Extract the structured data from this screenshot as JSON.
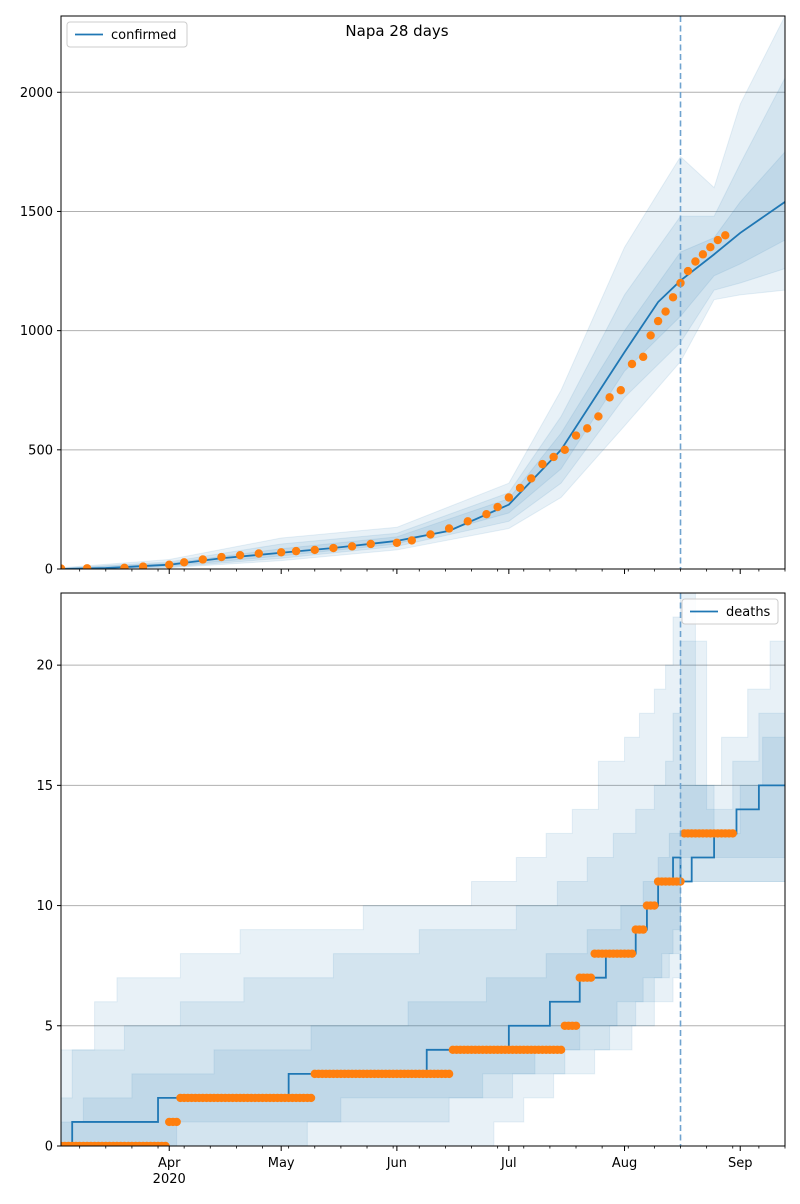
{
  "figure": {
    "title": "Napa 28 days",
    "background": "#ffffff",
    "colors": {
      "model": "#1f77b4",
      "observed": "#ff7f0e",
      "band": "#1f77b4",
      "grid": "#b0b0b0",
      "cutoff": "#6fa3cf"
    }
  },
  "chart_data": [
    {
      "type": "line",
      "title": "Napa 28 days",
      "legend": {
        "entries": [
          "confirmed"
        ],
        "placement": "top-left"
      },
      "grid": "horizontal",
      "xaxis": {
        "type": "date",
        "xlim": [
          "2020-03-03",
          "2020-09-13"
        ],
        "tick_labels": [],
        "major_ticks": [
          "2020-04-01",
          "2020-05-01",
          "2020-06-01",
          "2020-07-01",
          "2020-08-01",
          "2020-09-01"
        ]
      },
      "ylim": [
        0,
        2320
      ],
      "yticks": [
        0,
        500,
        1000,
        1500,
        2000
      ],
      "cutoff_date": "2020-08-16",
      "model": {
        "name": "confirmed",
        "x": [
          "2020-03-03",
          "2020-03-15",
          "2020-04-01",
          "2020-04-15",
          "2020-05-01",
          "2020-05-15",
          "2020-06-01",
          "2020-06-15",
          "2020-07-01",
          "2020-07-15",
          "2020-08-01",
          "2020-08-10",
          "2020-08-16",
          "2020-08-25",
          "2020-09-01",
          "2020-09-13"
        ],
        "y": [
          0,
          4,
          18,
          45,
          68,
          88,
          118,
          160,
          270,
          500,
          910,
          1120,
          1210,
          1320,
          1410,
          1540
        ]
      },
      "bands": [
        {
          "level": "outer",
          "x": [
            "2020-03-03",
            "2020-04-01",
            "2020-05-01",
            "2020-06-01",
            "2020-07-01",
            "2020-07-15",
            "2020-08-01",
            "2020-08-16",
            "2020-08-25",
            "2020-09-01",
            "2020-09-13"
          ],
          "lower": [
            0,
            5,
            35,
            80,
            170,
            300,
            600,
            870,
            1130,
            1150,
            1170
          ],
          "upper": [
            5,
            40,
            130,
            175,
            360,
            750,
            1350,
            1730,
            1600,
            1950,
            2320
          ]
        },
        {
          "level": "middle",
          "x": [
            "2020-03-03",
            "2020-04-01",
            "2020-05-01",
            "2020-06-01",
            "2020-07-01",
            "2020-07-15",
            "2020-08-01",
            "2020-08-16",
            "2020-08-25",
            "2020-09-01",
            "2020-09-13"
          ],
          "lower": [
            0,
            8,
            45,
            95,
            200,
            360,
            720,
            950,
            1170,
            1200,
            1260
          ],
          "upper": [
            3,
            30,
            105,
            150,
            320,
            640,
            1150,
            1480,
            1480,
            1700,
            2060
          ]
        },
        {
          "level": "inner",
          "x": [
            "2020-03-03",
            "2020-04-01",
            "2020-05-01",
            "2020-06-01",
            "2020-07-01",
            "2020-07-15",
            "2020-08-01",
            "2020-08-16",
            "2020-08-25",
            "2020-09-01",
            "2020-09-13"
          ],
          "lower": [
            0,
            12,
            55,
            105,
            235,
            420,
            830,
            1060,
            1230,
            1280,
            1380
          ],
          "upper": [
            2,
            24,
            85,
            135,
            295,
            570,
            1000,
            1330,
            1390,
            1540,
            1750
          ]
        }
      ],
      "observed": {
        "x": [
          "2020-03-03",
          "2020-03-10",
          "2020-03-20",
          "2020-03-25",
          "2020-04-01",
          "2020-04-05",
          "2020-04-10",
          "2020-04-15",
          "2020-04-20",
          "2020-04-25",
          "2020-05-01",
          "2020-05-05",
          "2020-05-10",
          "2020-05-15",
          "2020-05-20",
          "2020-05-25",
          "2020-06-01",
          "2020-06-05",
          "2020-06-10",
          "2020-06-15",
          "2020-06-20",
          "2020-06-25",
          "2020-06-28",
          "2020-07-01",
          "2020-07-04",
          "2020-07-07",
          "2020-07-10",
          "2020-07-13",
          "2020-07-16",
          "2020-07-19",
          "2020-07-22",
          "2020-07-25",
          "2020-07-28",
          "2020-07-31",
          "2020-08-03",
          "2020-08-06",
          "2020-08-08",
          "2020-08-10",
          "2020-08-12",
          "2020-08-14",
          "2020-08-16",
          "2020-08-18",
          "2020-08-20",
          "2020-08-22",
          "2020-08-24",
          "2020-08-26",
          "2020-08-28"
        ],
        "y": [
          2,
          3,
          5,
          10,
          18,
          28,
          40,
          50,
          58,
          65,
          70,
          75,
          80,
          88,
          95,
          105,
          110,
          120,
          145,
          170,
          200,
          230,
          260,
          300,
          340,
          380,
          440,
          470,
          500,
          560,
          590,
          640,
          720,
          750,
          860,
          890,
          980,
          1040,
          1080,
          1140,
          1200,
          1250,
          1290,
          1320,
          1350,
          1380,
          1400
        ]
      }
    },
    {
      "type": "line",
      "title": "",
      "legend": {
        "entries": [
          "deaths"
        ],
        "placement": "top-right"
      },
      "grid": "horizontal",
      "xaxis": {
        "type": "date",
        "xlim": [
          "2020-03-03",
          "2020-09-13"
        ],
        "major_ticks": [
          "2020-04-01",
          "2020-05-01",
          "2020-06-01",
          "2020-07-01",
          "2020-08-01",
          "2020-09-01"
        ],
        "tick_labels": [
          {
            "date": "2020-04-01",
            "label": "Apr",
            "sub": "2020"
          },
          {
            "date": "2020-05-01",
            "label": "May",
            "sub": ""
          },
          {
            "date": "2020-06-01",
            "label": "Jun",
            "sub": ""
          },
          {
            "date": "2020-07-01",
            "label": "Jul",
            "sub": ""
          },
          {
            "date": "2020-08-01",
            "label": "Aug",
            "sub": ""
          },
          {
            "date": "2020-09-01",
            "label": "Sep",
            "sub": ""
          }
        ]
      },
      "ylim": [
        0,
        23
      ],
      "yticks": [
        0,
        5,
        10,
        15,
        20
      ],
      "cutoff_date": "2020-08-16",
      "model": {
        "name": "deaths",
        "steps": [
          {
            "date": "2020-03-03",
            "value": 0
          },
          {
            "date": "2020-03-06",
            "value": 1
          },
          {
            "date": "2020-03-29",
            "value": 2
          },
          {
            "date": "2020-05-03",
            "value": 3
          },
          {
            "date": "2020-06-09",
            "value": 4
          },
          {
            "date": "2020-07-01",
            "value": 5
          },
          {
            "date": "2020-07-12",
            "value": 6
          },
          {
            "date": "2020-07-20",
            "value": 7
          },
          {
            "date": "2020-07-27",
            "value": 8
          },
          {
            "date": "2020-08-04",
            "value": 9
          },
          {
            "date": "2020-08-07",
            "value": 10
          },
          {
            "date": "2020-08-10",
            "value": 11
          },
          {
            "date": "2020-08-14",
            "value": 12
          },
          {
            "date": "2020-08-16",
            "value": 11
          },
          {
            "date": "2020-08-19",
            "value": 12
          },
          {
            "date": "2020-08-25",
            "value": 13
          },
          {
            "date": "2020-08-31",
            "value": 14
          },
          {
            "date": "2020-09-06",
            "value": 15
          },
          {
            "date": "2020-09-13",
            "value": 15
          }
        ]
      },
      "bands": [
        {
          "level": "outer",
          "lower": [
            [
              "2020-03-03",
              0
            ],
            [
              "2020-06-27",
              1
            ],
            [
              "2020-07-05",
              2
            ],
            [
              "2020-07-13",
              3
            ],
            [
              "2020-07-24",
              4
            ],
            [
              "2020-08-03",
              5
            ],
            [
              "2020-08-09",
              6
            ],
            [
              "2020-08-14",
              7
            ],
            [
              "2020-08-16",
              11
            ],
            [
              "2020-09-13",
              11
            ]
          ],
          "upper": [
            [
              "2020-03-03",
              4
            ],
            [
              "2020-03-12",
              6
            ],
            [
              "2020-03-18",
              7
            ],
            [
              "2020-04-04",
              8
            ],
            [
              "2020-04-20",
              9
            ],
            [
              "2020-05-23",
              10
            ],
            [
              "2020-06-21",
              11
            ],
            [
              "2020-07-03",
              12
            ],
            [
              "2020-07-11",
              13
            ],
            [
              "2020-07-18",
              14
            ],
            [
              "2020-07-25",
              16
            ],
            [
              "2020-08-01",
              17
            ],
            [
              "2020-08-05",
              18
            ],
            [
              "2020-08-09",
              19
            ],
            [
              "2020-08-12",
              20
            ],
            [
              "2020-08-14",
              22
            ],
            [
              "2020-08-16",
              23
            ],
            [
              "2020-08-20",
              15
            ],
            [
              "2020-08-27",
              17
            ],
            [
              "2020-09-03",
              19
            ],
            [
              "2020-09-09",
              21
            ],
            [
              "2020-09-13",
              23
            ]
          ]
        },
        {
          "level": "middle",
          "lower": [
            [
              "2020-03-03",
              0
            ],
            [
              "2020-05-08",
              1
            ],
            [
              "2020-06-15",
              2
            ],
            [
              "2020-07-02",
              3
            ],
            [
              "2020-07-16",
              4
            ],
            [
              "2020-07-28",
              5
            ],
            [
              "2020-08-04",
              6
            ],
            [
              "2020-08-09",
              7
            ],
            [
              "2020-08-13",
              8
            ],
            [
              "2020-08-16",
              11
            ],
            [
              "2020-09-13",
              11
            ]
          ],
          "upper": [
            [
              "2020-03-03",
              2
            ],
            [
              "2020-03-06",
              4
            ],
            [
              "2020-03-20",
              5
            ],
            [
              "2020-04-04",
              6
            ],
            [
              "2020-04-21",
              7
            ],
            [
              "2020-05-15",
              8
            ],
            [
              "2020-06-07",
              9
            ],
            [
              "2020-07-03",
              10
            ],
            [
              "2020-07-14",
              11
            ],
            [
              "2020-07-22",
              12
            ],
            [
              "2020-07-29",
              13
            ],
            [
              "2020-08-04",
              14
            ],
            [
              "2020-08-09",
              15
            ],
            [
              "2020-08-12",
              16
            ],
            [
              "2020-08-14",
              18
            ],
            [
              "2020-08-16",
              21
            ],
            [
              "2020-08-23",
              14
            ],
            [
              "2020-08-30",
              16
            ],
            [
              "2020-09-06",
              18
            ],
            [
              "2020-09-13",
              20
            ]
          ]
        },
        {
          "level": "inner",
          "lower": [
            [
              "2020-03-03",
              0
            ],
            [
              "2020-04-03",
              1
            ],
            [
              "2020-05-17",
              2
            ],
            [
              "2020-06-24",
              3
            ],
            [
              "2020-07-08",
              4
            ],
            [
              "2020-07-20",
              5
            ],
            [
              "2020-07-30",
              6
            ],
            [
              "2020-08-06",
              7
            ],
            [
              "2020-08-11",
              8
            ],
            [
              "2020-08-14",
              9
            ],
            [
              "2020-08-16",
              12
            ],
            [
              "2020-09-13",
              12
            ]
          ],
          "upper": [
            [
              "2020-03-03",
              1
            ],
            [
              "2020-03-09",
              2
            ],
            [
              "2020-03-22",
              3
            ],
            [
              "2020-04-13",
              4
            ],
            [
              "2020-05-09",
              5
            ],
            [
              "2020-06-04",
              6
            ],
            [
              "2020-06-25",
              7
            ],
            [
              "2020-07-11",
              8
            ],
            [
              "2020-07-22",
              9
            ],
            [
              "2020-07-31",
              10
            ],
            [
              "2020-08-06",
              11
            ],
            [
              "2020-08-10",
              12
            ],
            [
              "2020-08-13",
              13
            ],
            [
              "2020-08-16",
              15
            ],
            [
              "2020-08-25",
              13
            ],
            [
              "2020-09-01",
              15
            ],
            [
              "2020-09-07",
              17
            ],
            [
              "2020-09-13",
              18
            ]
          ]
        }
      ],
      "observed": {
        "runs": [
          {
            "start": "2020-03-03",
            "end": "2020-03-31",
            "value": 0
          },
          {
            "start": "2020-04-01",
            "end": "2020-04-03",
            "value": 1
          },
          {
            "start": "2020-04-04",
            "end": "2020-05-09",
            "value": 2
          },
          {
            "start": "2020-05-10",
            "end": "2020-06-15",
            "value": 3
          },
          {
            "start": "2020-06-16",
            "end": "2020-07-15",
            "value": 4
          },
          {
            "start": "2020-07-16",
            "end": "2020-07-19",
            "value": 5
          },
          {
            "start": "2020-07-20",
            "end": "2020-07-23",
            "value": 7
          },
          {
            "start": "2020-07-24",
            "end": "2020-08-03",
            "value": 8
          },
          {
            "start": "2020-08-04",
            "end": "2020-08-06",
            "value": 9
          },
          {
            "start": "2020-08-07",
            "end": "2020-08-09",
            "value": 10
          },
          {
            "start": "2020-08-10",
            "end": "2020-08-16",
            "value": 11
          },
          {
            "start": "2020-08-17",
            "end": "2020-08-30",
            "value": 13
          }
        ]
      }
    }
  ]
}
